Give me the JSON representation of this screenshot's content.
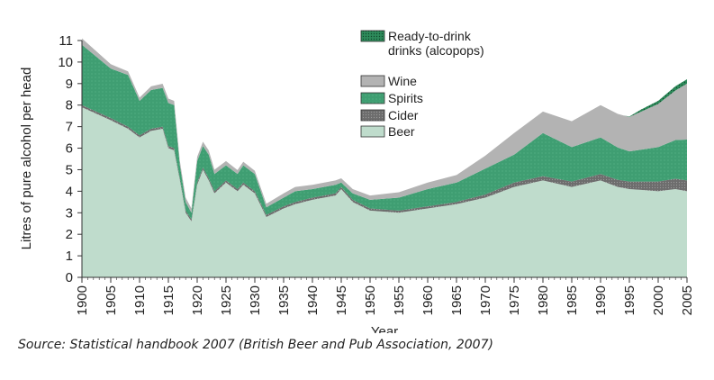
{
  "source_note": "Source: Statistical handbook 2007 (British Beer and Pub Association, 2007)",
  "chart_data": {
    "type": "area",
    "stacked": true,
    "xlabel": "Year",
    "ylabel": "Litres of pure alcohol per head",
    "xlim": [
      1900,
      2005
    ],
    "ylim": [
      0,
      11
    ],
    "xticks": [
      1900,
      1905,
      1910,
      1915,
      1920,
      1925,
      1930,
      1935,
      1940,
      1945,
      1950,
      1955,
      1960,
      1965,
      1970,
      1975,
      1980,
      1985,
      1990,
      1995,
      2000,
      2005
    ],
    "yticks": [
      0,
      1,
      2,
      3,
      4,
      5,
      6,
      7,
      8,
      9,
      10,
      11
    ],
    "grid": false,
    "legend_position": "top-right",
    "legend": [
      {
        "key": "alcopops",
        "label": "Ready-to-drink drinks (alcopops)",
        "lines": [
          "Ready-to-drink",
          "drinks (alcopops)"
        ],
        "color": "#2e8b5b",
        "pattern": "dots"
      },
      {
        "key": "wine",
        "label": "Wine",
        "color": "#b3b3b3"
      },
      {
        "key": "spirits",
        "label": "Spirits",
        "color": "#3f9e72",
        "pattern": "dots"
      },
      {
        "key": "cider",
        "label": "Cider",
        "color": "#6d6d6d",
        "pattern": "dots"
      },
      {
        "key": "beer",
        "label": "Beer",
        "color": "#bfdccc"
      }
    ],
    "colors": {
      "beer": "#bfdccc",
      "cider": "#6d6d6d",
      "spirits": "#3f9e72",
      "wine": "#b3b3b3",
      "alcopops": "#2e8b5b",
      "axis": "#333333"
    },
    "series": [
      {
        "key": "beer",
        "points": [
          [
            1900,
            7.9
          ],
          [
            1905,
            7.3
          ],
          [
            1908,
            6.9
          ],
          [
            1910,
            6.5
          ],
          [
            1912,
            6.8
          ],
          [
            1914,
            6.9
          ],
          [
            1915,
            6.0
          ],
          [
            1916,
            5.9
          ],
          [
            1917,
            4.5
          ],
          [
            1918,
            3.0
          ],
          [
            1919,
            2.6
          ],
          [
            1920,
            4.3
          ],
          [
            1921,
            5.0
          ],
          [
            1922,
            4.5
          ],
          [
            1923,
            3.9
          ],
          [
            1925,
            4.4
          ],
          [
            1927,
            4.0
          ],
          [
            1928,
            4.3
          ],
          [
            1930,
            3.9
          ],
          [
            1932,
            2.8
          ],
          [
            1935,
            3.2
          ],
          [
            1937,
            3.4
          ],
          [
            1940,
            3.6
          ],
          [
            1944,
            3.8
          ],
          [
            1945,
            4.1
          ],
          [
            1947,
            3.5
          ],
          [
            1950,
            3.1
          ],
          [
            1955,
            3.0
          ],
          [
            1960,
            3.2
          ],
          [
            1965,
            3.4
          ],
          [
            1970,
            3.7
          ],
          [
            1975,
            4.2
          ],
          [
            1980,
            4.5
          ],
          [
            1985,
            4.2
          ],
          [
            1990,
            4.5
          ],
          [
            1993,
            4.2
          ],
          [
            1995,
            4.1
          ],
          [
            2000,
            4.0
          ],
          [
            2003,
            4.1
          ],
          [
            2005,
            4.0
          ]
        ]
      },
      {
        "key": "cider",
        "points": [
          [
            1900,
            0.1
          ],
          [
            1910,
            0.1
          ],
          [
            1920,
            0.1
          ],
          [
            1930,
            0.1
          ],
          [
            1940,
            0.1
          ],
          [
            1950,
            0.1
          ],
          [
            1955,
            0.1
          ],
          [
            1960,
            0.1
          ],
          [
            1965,
            0.1
          ],
          [
            1970,
            0.15
          ],
          [
            1975,
            0.2
          ],
          [
            1980,
            0.2
          ],
          [
            1985,
            0.25
          ],
          [
            1990,
            0.3
          ],
          [
            1995,
            0.35
          ],
          [
            2000,
            0.45
          ],
          [
            2005,
            0.5
          ]
        ]
      },
      {
        "key": "spirits",
        "points": [
          [
            1900,
            2.8
          ],
          [
            1905,
            2.3
          ],
          [
            1908,
            2.4
          ],
          [
            1910,
            1.6
          ],
          [
            1912,
            1.8
          ],
          [
            1914,
            1.8
          ],
          [
            1915,
            2.0
          ],
          [
            1916,
            2.0
          ],
          [
            1917,
            0.6
          ],
          [
            1918,
            0.4
          ],
          [
            1919,
            0.3
          ],
          [
            1920,
            1.0
          ],
          [
            1921,
            1.0
          ],
          [
            1922,
            1.1
          ],
          [
            1923,
            0.8
          ],
          [
            1925,
            0.7
          ],
          [
            1927,
            0.7
          ],
          [
            1928,
            0.8
          ],
          [
            1930,
            0.8
          ],
          [
            1932,
            0.35
          ],
          [
            1935,
            0.4
          ],
          [
            1937,
            0.5
          ],
          [
            1940,
            0.4
          ],
          [
            1944,
            0.4
          ],
          [
            1945,
            0.2
          ],
          [
            1947,
            0.3
          ],
          [
            1950,
            0.4
          ],
          [
            1955,
            0.6
          ],
          [
            1960,
            0.8
          ],
          [
            1965,
            0.9
          ],
          [
            1970,
            1.2
          ],
          [
            1975,
            1.3
          ],
          [
            1980,
            2.0
          ],
          [
            1985,
            1.6
          ],
          [
            1990,
            1.7
          ],
          [
            1993,
            1.5
          ],
          [
            1995,
            1.4
          ],
          [
            2000,
            1.6
          ],
          [
            2003,
            1.8
          ],
          [
            2005,
            1.9
          ]
        ]
      },
      {
        "key": "wine",
        "points": [
          [
            1900,
            0.3
          ],
          [
            1905,
            0.2
          ],
          [
            1910,
            0.15
          ],
          [
            1915,
            0.2
          ],
          [
            1920,
            0.2
          ],
          [
            1925,
            0.2
          ],
          [
            1930,
            0.15
          ],
          [
            1935,
            0.2
          ],
          [
            1940,
            0.2
          ],
          [
            1945,
            0.2
          ],
          [
            1950,
            0.2
          ],
          [
            1955,
            0.25
          ],
          [
            1960,
            0.3
          ],
          [
            1965,
            0.35
          ],
          [
            1970,
            0.6
          ],
          [
            1975,
            1.0
          ],
          [
            1980,
            1.0
          ],
          [
            1985,
            1.2
          ],
          [
            1990,
            1.5
          ],
          [
            1995,
            1.6
          ],
          [
            2000,
            2.0
          ],
          [
            2003,
            2.3
          ],
          [
            2005,
            2.6
          ]
        ]
      },
      {
        "key": "alcopops",
        "points": [
          [
            1900,
            0
          ],
          [
            1994,
            0
          ],
          [
            1995,
            0.02
          ],
          [
            1997,
            0.1
          ],
          [
            2000,
            0.15
          ],
          [
            2003,
            0.2
          ],
          [
            2005,
            0.2
          ]
        ]
      }
    ]
  }
}
